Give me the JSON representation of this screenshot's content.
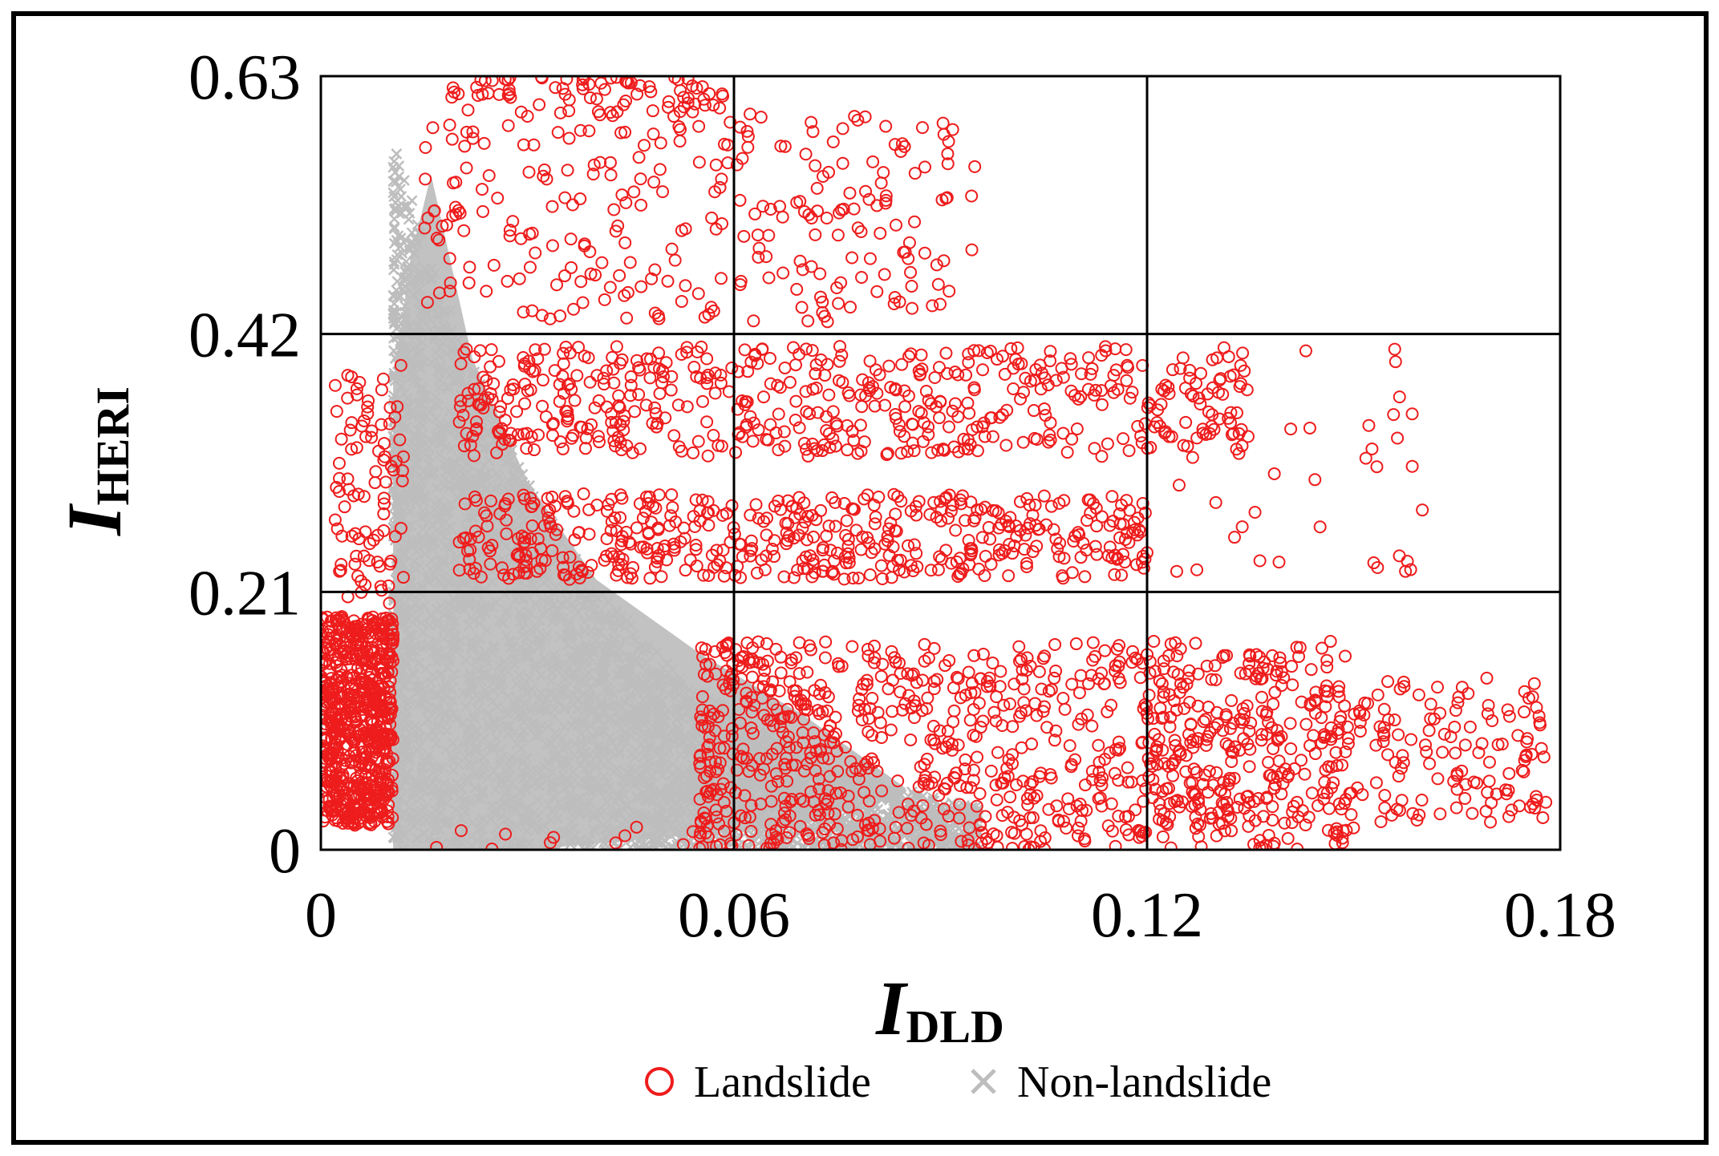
{
  "chart_data": {
    "type": "scatter",
    "xlabel": {
      "main": "I",
      "sub": "DLD"
    },
    "ylabel": {
      "main": "I",
      "sub": "HERI"
    },
    "xlim": [
      0,
      0.18
    ],
    "ylim": [
      0,
      0.63
    ],
    "xticks": [
      "0",
      "0.06",
      "0.12",
      "0.18"
    ],
    "yticks": [
      "0",
      "0.21",
      "0.42",
      "0.63"
    ],
    "xtick_values": [
      0,
      0.06,
      0.12,
      0.18
    ],
    "ytick_values": [
      0,
      0.21,
      0.42,
      0.63
    ],
    "grid": true,
    "legend_position": "bottom",
    "series": [
      {
        "name": "Landslide",
        "marker": "circle-open",
        "color": "#ee1c1c"
      },
      {
        "name": "Non-landslide",
        "marker": "x",
        "color": "#bdbdbd"
      }
    ]
  }
}
